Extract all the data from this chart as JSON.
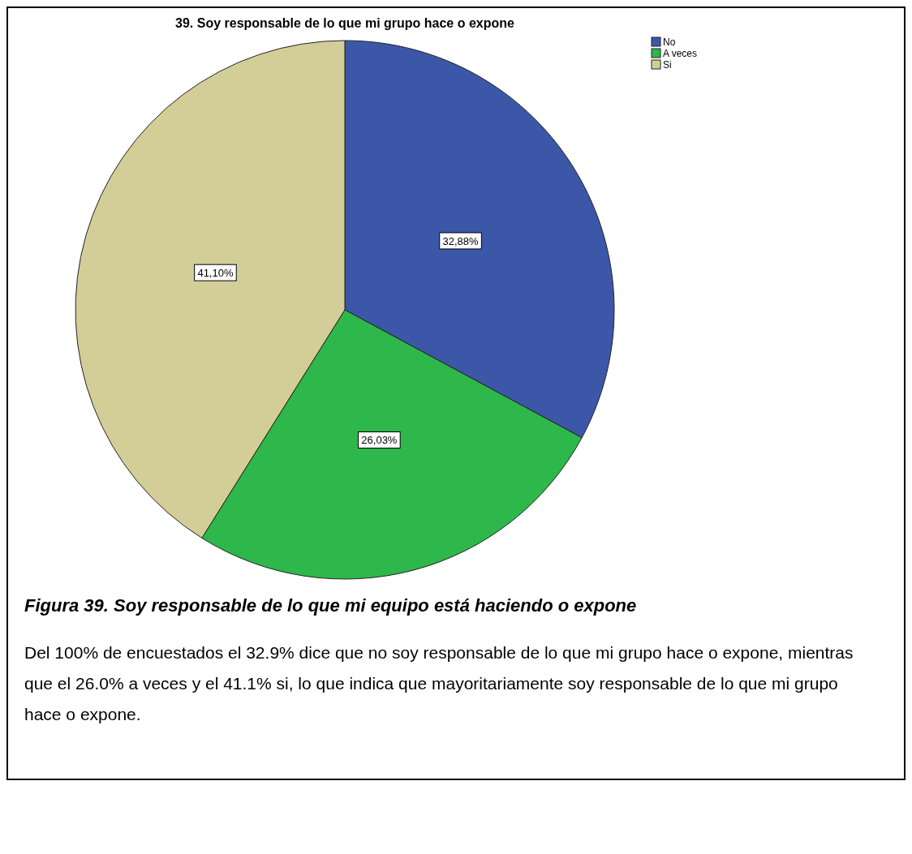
{
  "chart_data": {
    "type": "pie",
    "title": "39.  Soy responsable de lo que mi grupo hace o expone",
    "categories": [
      "No",
      "A veces",
      "Si"
    ],
    "values": [
      32.88,
      26.03,
      41.1
    ],
    "value_labels": [
      "32,88%",
      "26,03%",
      "41,10%"
    ],
    "colors": [
      "#3d57a8",
      "#2eb74a",
      "#d3ce98"
    ],
    "legend": "top right",
    "annotations": [
      "Figura 39. Soy responsable de lo que mi equipo está haciendo o expone",
      "Del 100% de encuestados el 32.9%  dice que no soy responsable de lo que mi grupo hace o expone, mientras que el 26.0% a veces y el 41.1% si, lo que indica que mayoritariamente soy responsable de lo que mi grupo hace o expone."
    ]
  }
}
